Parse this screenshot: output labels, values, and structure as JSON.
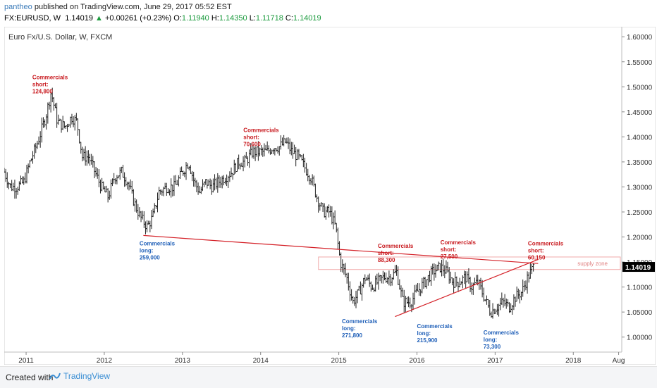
{
  "header": {
    "author": "pantheo",
    "published_text": "published on TradingView.com, June 29, 2017 05:52 EST",
    "symbol": "FX:EURUSD, W",
    "last": "1.14019",
    "up_arrow": "▲",
    "change": "+0.00261 (+0.23%)",
    "o_label": "O:",
    "o_val": "1.11940",
    "h_label": "H:",
    "h_val": "1.14350",
    "l_label": "L:",
    "l_val": "1.11718",
    "c_label": "C:",
    "c_val": "1.14019"
  },
  "footer": {
    "created_with": "Created with",
    "brand": "TradingView"
  },
  "colors": {
    "annotation_red": "#c8191e",
    "annotation_blue": "#1f5fb8",
    "trendline": "#d41f26",
    "supply_zone_border": "#f0a9a9",
    "supply_zone_text": "#e08080",
    "price_tag_bg": "#000000",
    "bars": "#222222"
  },
  "chart_data": {
    "type": "ohlc",
    "title": "Euro Fx/U.S. Dollar, W, FXCM",
    "ylim": [
      0.97,
      1.62
    ],
    "y_ticks": [
      "1.60000",
      "1.55000",
      "1.50000",
      "1.45000",
      "1.40000",
      "1.35000",
      "1.30000",
      "1.25000",
      "1.20000",
      "1.15000",
      "1.10000",
      "1.05000",
      "1.00000"
    ],
    "y_tick_values": [
      1.6,
      1.55,
      1.5,
      1.45,
      1.4,
      1.35,
      1.3,
      1.25,
      1.2,
      1.15,
      1.1,
      1.05,
      1.0
    ],
    "x_range": [
      2010.72,
      2018.62
    ],
    "x_ticks": [
      {
        "label": "2011",
        "t": 2011.0
      },
      {
        "label": "2012",
        "t": 2012.0
      },
      {
        "label": "2013",
        "t": 2013.0
      },
      {
        "label": "2014",
        "t": 2014.0
      },
      {
        "label": "2015",
        "t": 2015.0
      },
      {
        "label": "2016",
        "t": 2016.0
      },
      {
        "label": "2017",
        "t": 2017.0
      },
      {
        "label": "2018",
        "t": 2018.0
      },
      {
        "label": "Aug",
        "t": 2018.58
      }
    ],
    "last_price_tag": "1.14019",
    "last_price": 1.14019,
    "price_path": [
      [
        2010.72,
        1.33
      ],
      [
        2010.8,
        1.3
      ],
      [
        2010.88,
        1.3
      ],
      [
        2010.97,
        1.31
      ],
      [
        2011.05,
        1.35
      ],
      [
        2011.15,
        1.39
      ],
      [
        2011.25,
        1.44
      ],
      [
        2011.32,
        1.49
      ],
      [
        2011.4,
        1.43
      ],
      [
        2011.5,
        1.42
      ],
      [
        2011.58,
        1.44
      ],
      [
        2011.65,
        1.43
      ],
      [
        2011.72,
        1.36
      ],
      [
        2011.8,
        1.36
      ],
      [
        2011.88,
        1.33
      ],
      [
        2011.96,
        1.3
      ],
      [
        2012.05,
        1.28
      ],
      [
        2012.13,
        1.32
      ],
      [
        2012.22,
        1.33
      ],
      [
        2012.3,
        1.31
      ],
      [
        2012.38,
        1.27
      ],
      [
        2012.46,
        1.24
      ],
      [
        2012.55,
        1.22
      ],
      [
        2012.62,
        1.24
      ],
      [
        2012.7,
        1.29
      ],
      [
        2012.8,
        1.3
      ],
      [
        2012.9,
        1.3
      ],
      [
        2013.0,
        1.33
      ],
      [
        2013.08,
        1.35
      ],
      [
        2013.15,
        1.31
      ],
      [
        2013.22,
        1.29
      ],
      [
        2013.3,
        1.31
      ],
      [
        2013.38,
        1.3
      ],
      [
        2013.46,
        1.31
      ],
      [
        2013.55,
        1.32
      ],
      [
        2013.63,
        1.33
      ],
      [
        2013.72,
        1.35
      ],
      [
        2013.8,
        1.35
      ],
      [
        2013.9,
        1.37
      ],
      [
        2014.0,
        1.37
      ],
      [
        2014.08,
        1.37
      ],
      [
        2014.16,
        1.38
      ],
      [
        2014.24,
        1.38
      ],
      [
        2014.32,
        1.39
      ],
      [
        2014.4,
        1.37
      ],
      [
        2014.48,
        1.36
      ],
      [
        2014.56,
        1.34
      ],
      [
        2014.64,
        1.32
      ],
      [
        2014.72,
        1.28
      ],
      [
        2014.8,
        1.25
      ],
      [
        2014.88,
        1.25
      ],
      [
        2014.96,
        1.22
      ],
      [
        2015.02,
        1.15
      ],
      [
        2015.1,
        1.12
      ],
      [
        2015.18,
        1.07
      ],
      [
        2015.26,
        1.09
      ],
      [
        2015.34,
        1.12
      ],
      [
        2015.42,
        1.1
      ],
      [
        2015.5,
        1.11
      ],
      [
        2015.58,
        1.12
      ],
      [
        2015.66,
        1.12
      ],
      [
        2015.74,
        1.13
      ],
      [
        2015.82,
        1.07
      ],
      [
        2015.92,
        1.07
      ],
      [
        2016.0,
        1.09
      ],
      [
        2016.1,
        1.11
      ],
      [
        2016.2,
        1.13
      ],
      [
        2016.3,
        1.14
      ],
      [
        2016.38,
        1.13
      ],
      [
        2016.46,
        1.11
      ],
      [
        2016.54,
        1.11
      ],
      [
        2016.62,
        1.12
      ],
      [
        2016.7,
        1.1
      ],
      [
        2016.78,
        1.11
      ],
      [
        2016.86,
        1.08
      ],
      [
        2016.94,
        1.05
      ],
      [
        2017.02,
        1.06
      ],
      [
        2017.1,
        1.07
      ],
      [
        2017.18,
        1.06
      ],
      [
        2017.26,
        1.08
      ],
      [
        2017.34,
        1.09
      ],
      [
        2017.42,
        1.12
      ],
      [
        2017.49,
        1.14
      ]
    ],
    "annotations": [
      {
        "kind": "short",
        "title": "Commercials",
        "sub": "short:",
        "value": "124,800",
        "t": 2011.08,
        "p": 1.515
      },
      {
        "kind": "short",
        "title": "Commercials",
        "sub": "short:",
        "value": "70,600",
        "t": 2013.78,
        "p": 1.41
      },
      {
        "kind": "short",
        "title": "Commercials",
        "sub": "short:",
        "value": "88,300",
        "t": 2015.5,
        "p": 1.178
      },
      {
        "kind": "short",
        "title": "Commercials",
        "sub": "short:",
        "value": "27,500",
        "t": 2016.3,
        "p": 1.185
      },
      {
        "kind": "short",
        "title": "Commercials",
        "sub": "short:",
        "value": "60,150",
        "t": 2017.42,
        "p": 1.183
      },
      {
        "kind": "long",
        "title": "Commercials",
        "sub": "long:",
        "value": "259,000",
        "t": 2012.45,
        "p": 1.183
      },
      {
        "kind": "long",
        "title": "Commercials",
        "sub": "long:",
        "value": "271,800",
        "t": 2015.04,
        "p": 1.028
      },
      {
        "kind": "long",
        "title": "Commercials",
        "sub": "long:",
        "value": "215,900",
        "t": 2016.0,
        "p": 1.018
      },
      {
        "kind": "long",
        "title": "Commercials",
        "sub": "long:",
        "value": "73,300",
        "t": 2016.85,
        "p": 1.005
      }
    ],
    "supply_zone": {
      "label": "supply zone",
      "t_start": 2014.74,
      "t_end": 2018.72,
      "p_low": 1.135,
      "p_high": 1.16
    },
    "trendlines": [
      {
        "t1": 2012.5,
        "p1": 1.203,
        "t2": 2017.55,
        "p2": 1.147
      },
      {
        "t1": 2015.72,
        "p1": 1.041,
        "t2": 2017.55,
        "p2": 1.155
      }
    ],
    "grid": false
  }
}
